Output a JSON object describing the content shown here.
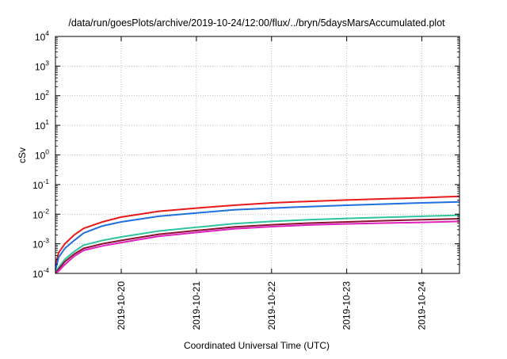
{
  "chart_data": {
    "type": "line",
    "title": "/data/run/goesPlots/archive/2019-10-24/12:00/flux/../bryn/5daysMarsAccumulated.plot",
    "xlabel": "Coordinated Universal Time (UTC)",
    "ylabel": "cSv",
    "yscale": "log",
    "ylim": [
      0.0001,
      10000
    ],
    "xlim": [
      "2019-10-19T03:00",
      "2019-10-24T12:00"
    ],
    "x_ticks": [
      "2019-10-20",
      "2019-10-21",
      "2019-10-22",
      "2019-10-23",
      "2019-10-24"
    ],
    "y_ticks": [
      {
        "mant": "10",
        "exp": "-4",
        "value": 0.0001
      },
      {
        "mant": "10",
        "exp": "-3",
        "value": 0.001
      },
      {
        "mant": "10",
        "exp": "-2",
        "value": 0.01
      },
      {
        "mant": "10",
        "exp": "-1",
        "value": 0.1
      },
      {
        "mant": "10",
        "exp": "0",
        "value": 1
      },
      {
        "mant": "10",
        "exp": "1",
        "value": 10
      },
      {
        "mant": "10",
        "exp": "2",
        "value": 100
      },
      {
        "mant": "10",
        "exp": "3",
        "value": 1000
      },
      {
        "mant": "10",
        "exp": "4",
        "value": 10000
      }
    ],
    "grid": true,
    "legend": "none",
    "x": [
      "2019-10-19T03:00",
      "2019-10-19T04:00",
      "2019-10-19T06:00",
      "2019-10-19T09:00",
      "2019-10-19T12:00",
      "2019-10-19T18:00",
      "2019-10-20T00:00",
      "2019-10-20T12:00",
      "2019-10-21T00:00",
      "2019-10-21T12:00",
      "2019-10-22T00:00",
      "2019-10-22T12:00",
      "2019-10-23T00:00",
      "2019-10-23T12:00",
      "2019-10-24T00:00",
      "2019-10-24T12:00"
    ],
    "series": [
      {
        "color": "#e8191a",
        "values": [
          0.00018,
          0.0005,
          0.001,
          0.002,
          0.0033,
          0.0055,
          0.008,
          0.0125,
          0.016,
          0.02,
          0.024,
          0.027,
          0.03,
          0.033,
          0.036,
          0.04
        ]
      },
      {
        "color": "#1f6fe0",
        "values": [
          0.00013,
          0.00035,
          0.0007,
          0.0013,
          0.0023,
          0.004,
          0.0055,
          0.0085,
          0.011,
          0.014,
          0.016,
          0.018,
          0.02,
          0.022,
          0.024,
          0.026
        ]
      },
      {
        "color": "#2fc4a0",
        "values": [
          0.00011,
          0.00016,
          0.0003,
          0.00055,
          0.0009,
          0.0013,
          0.0017,
          0.0027,
          0.0036,
          0.0048,
          0.0057,
          0.0065,
          0.0072,
          0.0078,
          0.0085,
          0.0092
        ]
      },
      {
        "color": "#8a1430",
        "values": [
          0.0001,
          0.00014,
          0.00025,
          0.00045,
          0.0007,
          0.001,
          0.0013,
          0.0021,
          0.0028,
          0.0037,
          0.0044,
          0.005,
          0.0055,
          0.006,
          0.0065,
          0.007
        ]
      },
      {
        "color": "#e020c0",
        "values": [
          0.0001,
          0.00012,
          0.0002,
          0.00038,
          0.0006,
          0.00085,
          0.0011,
          0.0018,
          0.0024,
          0.0032,
          0.0038,
          0.0043,
          0.0047,
          0.005,
          0.0053,
          0.0057
        ]
      }
    ]
  }
}
